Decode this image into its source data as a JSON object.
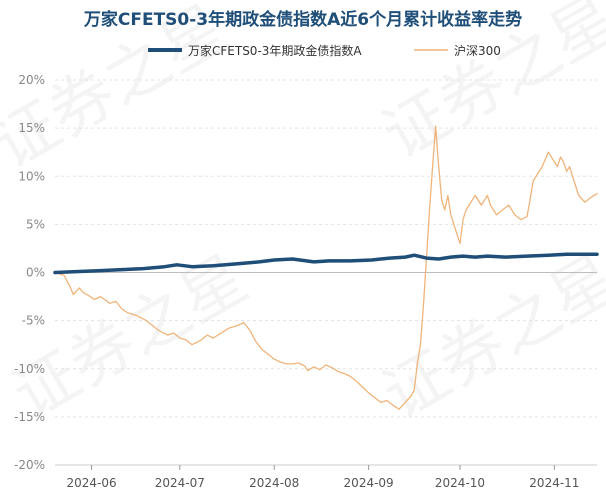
{
  "chart_data": {
    "type": "line",
    "title": "万家CFETS0-3年期政金债指数A近6个月累计收益率走势",
    "xlabel": "",
    "ylabel": "",
    "ylim": [
      -20,
      20
    ],
    "y_ticks": [
      "20%",
      "15%",
      "10%",
      "5%",
      "0%",
      "-5%",
      "-10%",
      "-15%",
      "-20%"
    ],
    "y_tick_values": [
      20,
      15,
      10,
      5,
      0,
      -5,
      -10,
      -15,
      -20
    ],
    "x_ticks": [
      "2024-06",
      "2024-07",
      "2024-08",
      "2024-09",
      "2024-10",
      "2024-11"
    ],
    "x_tick_days": [
      12,
      41,
      72,
      103,
      133,
      164
    ],
    "x_domain_days": [
      0,
      178
    ],
    "grid": true,
    "legend_position": "top",
    "series": [
      {
        "name": "万家CFETS0-3年期政金债指数A",
        "color": "#1f4e79",
        "x_days": [
          0,
          8,
          15,
          22,
          29,
          36,
          40,
          45,
          52,
          60,
          67,
          72,
          78,
          85,
          90,
          97,
          104,
          110,
          115,
          118,
          122,
          126,
          130,
          134,
          138,
          142,
          148,
          155,
          162,
          168,
          174,
          178
        ],
        "values": [
          0.0,
          0.1,
          0.2,
          0.3,
          0.4,
          0.6,
          0.8,
          0.6,
          0.7,
          0.9,
          1.1,
          1.3,
          1.4,
          1.1,
          1.2,
          1.2,
          1.3,
          1.5,
          1.6,
          1.8,
          1.5,
          1.4,
          1.6,
          1.7,
          1.6,
          1.7,
          1.6,
          1.7,
          1.8,
          1.9,
          1.9,
          1.9
        ]
      },
      {
        "name": "沪深300",
        "color": "#f0b47a",
        "x_days": [
          0,
          3,
          5,
          6,
          8,
          9,
          11,
          13,
          15,
          18,
          20,
          22,
          24,
          27,
          30,
          32,
          34,
          37,
          39,
          41,
          43,
          45,
          48,
          50,
          52,
          55,
          57,
          60,
          62,
          64,
          66,
          68,
          70,
          72,
          74,
          76,
          78,
          80,
          82,
          83,
          85,
          87,
          89,
          91,
          93,
          95,
          97,
          99,
          101,
          103,
          105,
          107,
          109,
          111,
          113,
          115,
          117,
          118,
          119,
          120,
          121,
          122,
          123,
          124,
          125,
          126,
          127,
          128,
          129,
          130,
          131,
          132,
          133,
          134,
          135,
          136,
          138,
          140,
          142,
          143,
          144,
          145,
          147,
          149,
          151,
          153,
          155,
          156,
          157,
          158,
          160,
          162,
          164,
          165,
          166,
          167,
          168,
          169,
          170,
          172,
          174,
          176,
          178
        ],
        "values": [
          0.0,
          -0.3,
          -1.5,
          -2.3,
          -1.6,
          -2.0,
          -2.4,
          -2.8,
          -2.5,
          -3.2,
          -3.0,
          -3.8,
          -4.2,
          -4.5,
          -5.0,
          -5.5,
          -6.0,
          -6.5,
          -6.3,
          -6.8,
          -7.0,
          -7.5,
          -7.0,
          -6.5,
          -6.8,
          -6.2,
          -5.8,
          -5.5,
          -5.2,
          -6.0,
          -7.2,
          -8.0,
          -8.5,
          -9.0,
          -9.3,
          -9.5,
          -9.5,
          -9.4,
          -9.7,
          -10.2,
          -9.8,
          -10.1,
          -9.6,
          -9.9,
          -10.3,
          -10.5,
          -10.8,
          -11.3,
          -11.9,
          -12.5,
          -13.0,
          -13.5,
          -13.3,
          -13.8,
          -14.2,
          -13.5,
          -12.8,
          -12.2,
          -9.5,
          -7.5,
          -3.5,
          1.5,
          6.5,
          11.0,
          15.2,
          11.0,
          7.5,
          6.5,
          8.0,
          6.0,
          5.0,
          4.0,
          3.0,
          5.5,
          6.5,
          7.0,
          8.0,
          7.0,
          8.0,
          7.0,
          6.5,
          6.0,
          6.5,
          7.0,
          6.0,
          5.5,
          5.8,
          7.5,
          9.5,
          10.0,
          11.0,
          12.5,
          11.5,
          11.0,
          12.0,
          11.5,
          10.5,
          11.0,
          10.0,
          8.0,
          7.3,
          7.8,
          8.2
        ]
      }
    ]
  },
  "watermark": {
    "text": "证券之星"
  }
}
